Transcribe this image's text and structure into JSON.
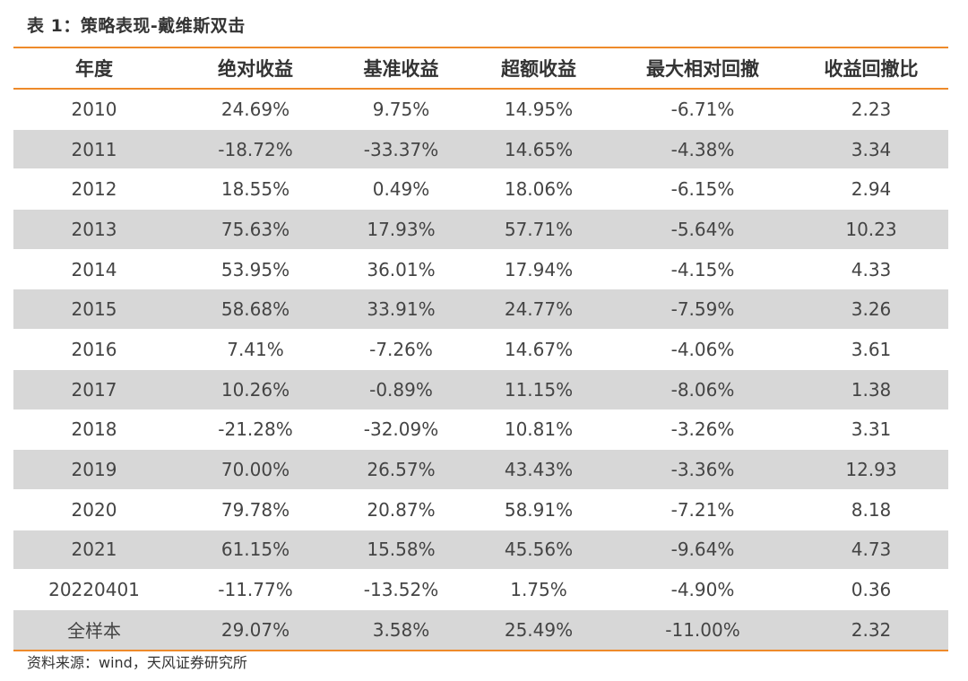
{
  "caption": "表 1：策略表现-戴维斯双击",
  "headers": [
    "年度",
    "绝对收益",
    "基准收益",
    "超额收益",
    "最大相对回撤",
    "收益回撤比"
  ],
  "rows": [
    [
      "2010",
      "24.69%",
      "9.75%",
      "14.95%",
      "-6.71%",
      "2.23"
    ],
    [
      "2011",
      "-18.72%",
      "-33.37%",
      "14.65%",
      "-4.38%",
      "3.34"
    ],
    [
      "2012",
      "18.55%",
      "0.49%",
      "18.06%",
      "-6.15%",
      "2.94"
    ],
    [
      "2013",
      "75.63%",
      "17.93%",
      "57.71%",
      "-5.64%",
      "10.23"
    ],
    [
      "2014",
      "53.95%",
      "36.01%",
      "17.94%",
      "-4.15%",
      "4.33"
    ],
    [
      "2015",
      "58.68%",
      "33.91%",
      "24.77%",
      "-7.59%",
      "3.26"
    ],
    [
      "2016",
      "7.41%",
      "-7.26%",
      "14.67%",
      "-4.06%",
      "3.61"
    ],
    [
      "2017",
      "10.26%",
      "-0.89%",
      "11.15%",
      "-8.06%",
      "1.38"
    ],
    [
      "2018",
      "-21.28%",
      "-32.09%",
      "10.81%",
      "-3.26%",
      "3.31"
    ],
    [
      "2019",
      "70.00%",
      "26.57%",
      "43.43%",
      "-3.36%",
      "12.93"
    ],
    [
      "2020",
      "79.78%",
      "20.87%",
      "58.91%",
      "-7.21%",
      "8.18"
    ],
    [
      "2021",
      "61.15%",
      "15.58%",
      "45.56%",
      "-9.64%",
      "4.73"
    ],
    [
      "20220401",
      "-11.77%",
      "-13.52%",
      "1.75%",
      "-4.90%",
      "0.36"
    ],
    [
      "全样本",
      "29.07%",
      "3.58%",
      "25.49%",
      "-11.00%",
      "2.32"
    ]
  ],
  "source": "资料来源：wind，天风证券研究所",
  "colors": {
    "accent_rule": "#ee8a2a",
    "shaded_row": "#d7d7d7",
    "text": "#333333"
  }
}
